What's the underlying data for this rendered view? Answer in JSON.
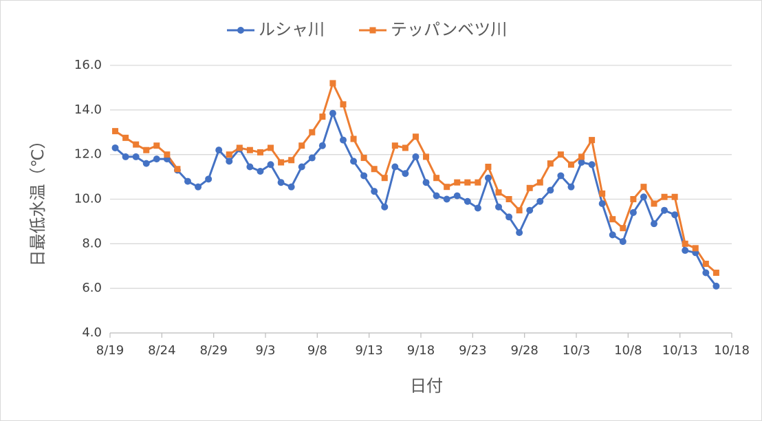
{
  "chart_data": {
    "type": "line",
    "categories": [
      "8/19",
      "8/20",
      "8/21",
      "8/22",
      "8/23",
      "8/24",
      "8/25",
      "8/26",
      "8/27",
      "8/28",
      "8/29",
      "8/30",
      "8/31",
      "9/1",
      "9/2",
      "9/3",
      "9/4",
      "9/5",
      "9/6",
      "9/7",
      "9/8",
      "9/9",
      "9/10",
      "9/11",
      "9/12",
      "9/13",
      "9/14",
      "9/15",
      "9/16",
      "9/17",
      "9/18",
      "9/19",
      "9/20",
      "9/21",
      "9/22",
      "9/23",
      "9/24",
      "9/25",
      "9/26",
      "9/27",
      "9/28",
      "9/29",
      "9/30",
      "10/1",
      "10/2",
      "10/3",
      "10/4",
      "10/5",
      "10/6",
      "10/7",
      "10/8",
      "10/9",
      "10/10",
      "10/11",
      "10/12",
      "10/13",
      "10/14",
      "10/15",
      "10/16"
    ],
    "series": [
      {
        "name": "ルシャ川",
        "color": "#4472c4",
        "marker": "circle",
        "values": [
          12.3,
          11.9,
          11.9,
          11.6,
          11.8,
          11.8,
          11.3,
          10.8,
          10.55,
          10.9,
          12.2,
          11.7,
          12.25,
          11.45,
          11.25,
          11.55,
          10.75,
          10.55,
          11.45,
          11.85,
          12.4,
          13.85,
          12.65,
          11.7,
          11.05,
          10.35,
          9.65,
          11.45,
          11.15,
          11.9,
          10.75,
          10.15,
          10.0,
          10.15,
          9.9,
          9.6,
          10.95,
          9.65,
          9.2,
          8.5,
          9.5,
          9.9,
          10.4,
          11.05,
          10.55,
          11.65,
          11.55,
          9.8,
          8.4,
          8.1,
          9.4,
          10.1,
          8.9,
          9.5,
          9.3,
          7.7,
          7.6,
          6.7,
          6.1
        ]
      },
      {
        "name": "テッパンベツ川",
        "color": "#ed7d31",
        "marker": "square",
        "values": [
          13.05,
          12.75,
          12.45,
          12.2,
          12.4,
          12.0,
          11.35,
          null,
          null,
          null,
          null,
          12.0,
          12.3,
          12.2,
          12.1,
          12.3,
          11.65,
          11.75,
          12.4,
          13.0,
          13.7,
          15.2,
          14.25,
          12.7,
          11.85,
          11.35,
          10.95,
          12.4,
          12.3,
          12.8,
          11.9,
          10.95,
          10.55,
          10.75,
          10.75,
          10.75,
          11.45,
          10.3,
          10.0,
          9.5,
          10.5,
          10.75,
          11.6,
          12.0,
          11.55,
          11.9,
          12.65,
          10.25,
          9.1,
          8.7,
          10.0,
          10.55,
          9.8,
          10.1,
          10.1,
          8.0,
          7.8,
          7.1,
          6.7
        ]
      }
    ],
    "xlabel": "日付",
    "ylabel": "日最低水温（℃）",
    "xticks": [
      "8/19",
      "8/24",
      "8/29",
      "9/3",
      "9/8",
      "9/13",
      "9/18",
      "9/23",
      "9/28",
      "10/3",
      "10/8",
      "10/13",
      "10/18"
    ],
    "ylim": [
      4,
      16
    ],
    "yticks": [
      {
        "value": 4,
        "label": "4.0"
      },
      {
        "value": 6,
        "label": "6.0"
      },
      {
        "value": 8,
        "label": "8.0"
      },
      {
        "value": 10,
        "label": "10.0"
      },
      {
        "value": 12,
        "label": "12.0"
      },
      {
        "value": 14,
        "label": "14.0"
      },
      {
        "value": 16,
        "label": "16.0"
      }
    ],
    "grid": true,
    "legend": "top"
  }
}
